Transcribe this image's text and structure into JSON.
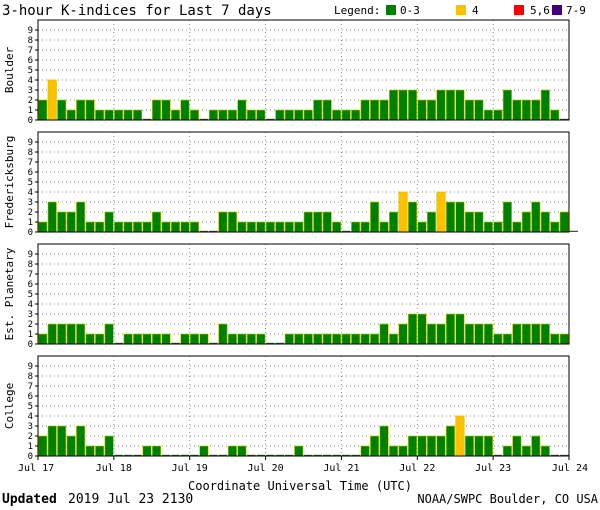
{
  "title": "3-hour K-indices for Last 7 days",
  "legend": {
    "label": "Legend:",
    "items": [
      {
        "label": "0-3",
        "color": "#008000"
      },
      {
        "label": "4",
        "color": "#ffc000"
      },
      {
        "label": "5,6",
        "color": "#ff0000"
      },
      {
        "label": "7-9",
        "color": "#400080"
      }
    ]
  },
  "footer": {
    "updated_label": "Updated",
    "updated_value": "2019 Jul 23 2130",
    "source": "NOAA/SWPC Boulder, CO USA"
  },
  "chart_data": {
    "type": "bar",
    "xlabel": "Coordinate Universal Time (UTC)",
    "x_tick_labels": [
      "Jul 17",
      "Jul 18",
      "Jul 19",
      "Jul 20",
      "Jul 21",
      "Jul 22",
      "Jul 23",
      "Jul 24"
    ],
    "y_ticks": [
      0,
      1,
      2,
      3,
      4,
      5,
      6,
      7,
      8,
      9
    ],
    "ylim": [
      0,
      9
    ],
    "grid": true,
    "bars_per_day": 8,
    "panels": [
      {
        "name": "Boulder",
        "values": [
          2,
          4,
          2,
          1,
          2,
          2,
          1,
          1,
          1,
          1,
          1,
          0,
          2,
          2,
          1,
          2,
          1,
          0,
          1,
          1,
          1,
          2,
          1,
          1,
          0,
          1,
          1,
          1,
          1,
          2,
          2,
          1,
          1,
          1,
          2,
          2,
          2,
          3,
          3,
          3,
          2,
          2,
          3,
          3,
          3,
          2,
          2,
          1,
          1,
          3,
          2,
          2,
          2,
          3,
          1,
          0
        ]
      },
      {
        "name": "Fredericksburg",
        "values": [
          1,
          3,
          2,
          2,
          3,
          1,
          1,
          2,
          1,
          1,
          1,
          1,
          2,
          1,
          1,
          1,
          1,
          0,
          0,
          2,
          2,
          1,
          1,
          1,
          1,
          1,
          1,
          1,
          2,
          2,
          2,
          1,
          0,
          1,
          1,
          3,
          1,
          2,
          4,
          3,
          1,
          2,
          4,
          3,
          3,
          2,
          2,
          1,
          1,
          3,
          1,
          2,
          3,
          2,
          1,
          2,
          0
        ]
      },
      {
        "name": "Est. Planetary",
        "values": [
          1,
          2,
          2,
          2,
          2,
          1,
          1,
          2,
          0,
          1,
          1,
          1,
          1,
          1,
          0,
          1,
          1,
          1,
          0,
          2,
          1,
          1,
          1,
          1,
          0,
          0,
          1,
          1,
          1,
          1,
          1,
          1,
          1,
          1,
          1,
          1,
          2,
          1,
          2,
          3,
          3,
          2,
          2,
          3,
          3,
          2,
          2,
          2,
          1,
          1,
          2,
          2,
          2,
          2,
          1,
          1
        ]
      },
      {
        "name": "College",
        "values": [
          2,
          3,
          3,
          2,
          3,
          1,
          1,
          2,
          0,
          0,
          0,
          1,
          1,
          0,
          0,
          0,
          0,
          1,
          0,
          0,
          1,
          1,
          0,
          0,
          0,
          0,
          0,
          1,
          0,
          0,
          0,
          0,
          0,
          0,
          1,
          2,
          3,
          1,
          1,
          2,
          2,
          2,
          2,
          3,
          4,
          2,
          2,
          2,
          0,
          1,
          2,
          1,
          2,
          1,
          0,
          0
        ]
      }
    ]
  }
}
